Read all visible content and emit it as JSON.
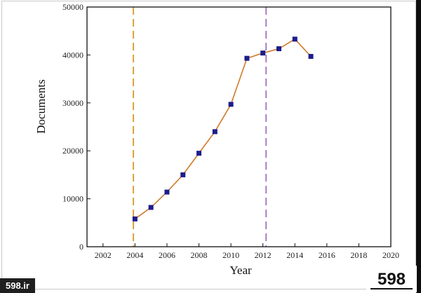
{
  "chart_data": {
    "type": "line",
    "title": "",
    "xlabel": "Year",
    "ylabel": "Documents",
    "xlim": [
      2001,
      2020
    ],
    "ylim": [
      0,
      50000
    ],
    "x_ticks": [
      2002,
      2004,
      2006,
      2008,
      2010,
      2012,
      2014,
      2016,
      2018,
      2020
    ],
    "y_ticks": [
      0,
      10000,
      20000,
      30000,
      40000,
      50000
    ],
    "grid": false,
    "series": [
      {
        "x": [
          2004,
          2005,
          2006,
          2007,
          2008,
          2009,
          2010,
          2011,
          2012,
          2013,
          2014,
          2015
        ],
        "y": [
          5800,
          8200,
          11400,
          15000,
          19500,
          24000,
          29700,
          39300,
          40400,
          41300,
          43300,
          39700
        ],
        "color": "#d07a2a",
        "marker_color": "#1c1c8c"
      }
    ],
    "reference_lines": [
      {
        "x": 2003.9,
        "color": "#d9a23a"
      },
      {
        "x": 2012.2,
        "color": "#a77cc9"
      }
    ]
  },
  "watermark": {
    "site": "598.ir",
    "logo_text": "598"
  }
}
